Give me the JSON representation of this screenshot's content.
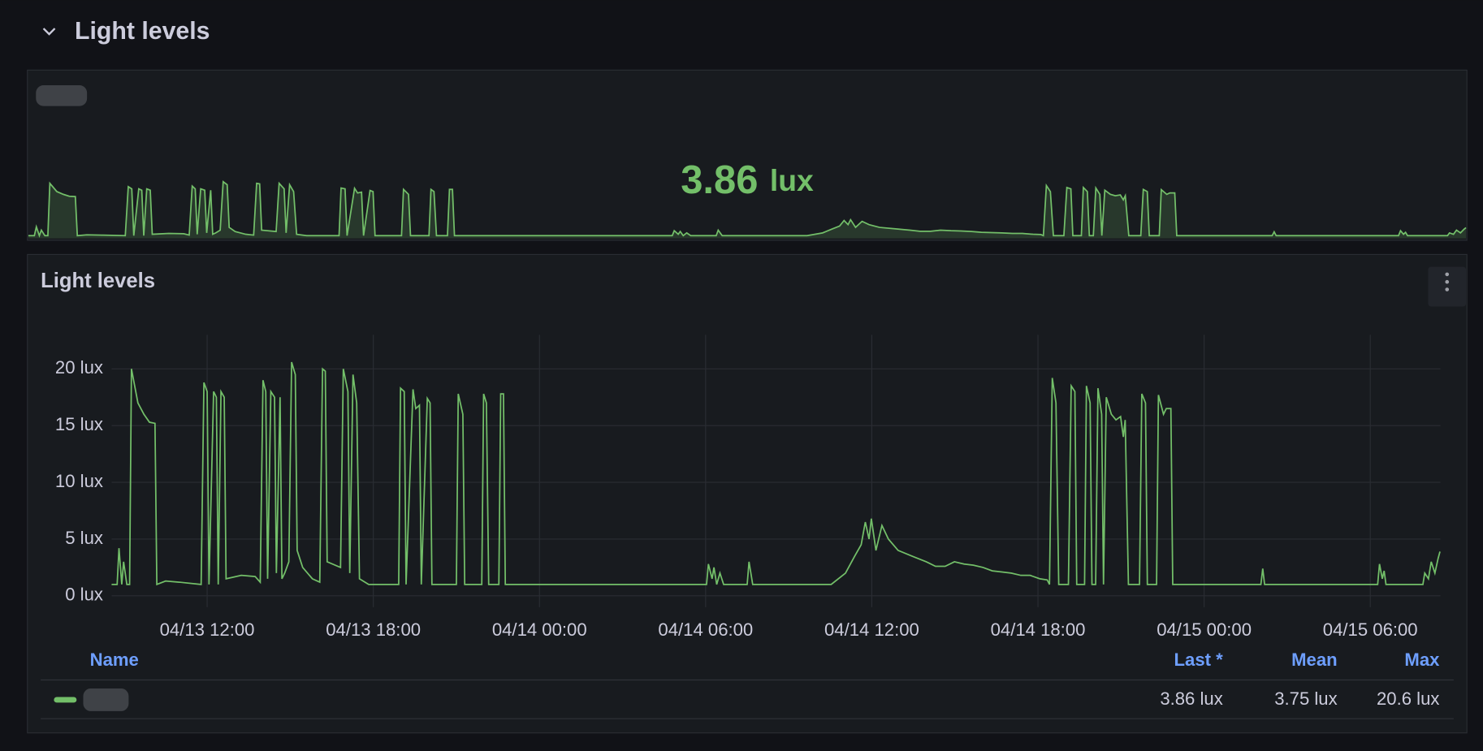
{
  "row": {
    "title": "Light levels"
  },
  "chart_data": [
    {
      "type": "stat",
      "value": 3.86,
      "unit": "lux",
      "color": "#73bf69"
    },
    {
      "type": "line",
      "title": "Light levels",
      "x": [
        "04/13 08:33",
        "04/13 08:45",
        "04/13 08:49",
        "04/13 08:55",
        "04/13 08:59",
        "04/13 09:06",
        "04/13 09:12",
        "04/13 09:16",
        "04/13 09:30",
        "04/13 09:43",
        "04/13 09:55",
        "04/13 10:07",
        "04/13 10:11",
        "04/13 10:30",
        "04/13 11:00",
        "04/13 11:47",
        "04/13 11:53",
        "04/13 12:00",
        "04/13 12:04",
        "04/13 12:14",
        "04/13 12:20",
        "04/13 12:24",
        "04/13 12:30",
        "04/13 12:37",
        "04/13 12:41",
        "04/13 13:14",
        "04/13 13:44",
        "04/13 13:55",
        "04/13 14:01",
        "04/13 14:07",
        "04/13 14:11",
        "04/13 14:18",
        "04/13 14:26",
        "04/13 14:30",
        "04/13 14:38",
        "04/13 14:42",
        "04/13 14:48",
        "04/13 14:57",
        "04/13 15:03",
        "04/13 15:11",
        "04/13 15:15",
        "04/13 15:27",
        "04/13 15:48",
        "04/13 16:04",
        "04/13 16:10",
        "04/13 16:16",
        "04/13 16:20",
        "04/13 16:49",
        "04/13 16:55",
        "04/13 17:05",
        "04/13 17:09",
        "04/13 17:16",
        "04/13 17:24",
        "04/13 17:30",
        "04/13 17:50",
        "04/13 18:55",
        "04/13 18:59",
        "04/13 19:07",
        "04/13 19:11",
        "04/13 19:26",
        "04/13 19:32",
        "04/13 19:40",
        "04/13 19:44",
        "04/13 19:57",
        "04/13 20:03",
        "04/13 20:07",
        "04/13 21:00",
        "04/13 21:04",
        "04/13 21:14",
        "04/13 21:18",
        "04/13 21:55",
        "04/13 21:59",
        "04/13 22:05",
        "04/13 22:10",
        "04/13 22:32",
        "04/13 22:36",
        "04/13 22:42",
        "04/13 22:46",
        "04/14 06:02",
        "04/14 06:06",
        "04/14 06:14",
        "04/14 06:18",
        "04/14 06:24",
        "04/14 06:31",
        "04/14 06:39",
        "04/14 07:30",
        "04/14 07:34",
        "04/14 07:42",
        "04/14 10:32",
        "04/14 11:03",
        "04/14 11:23",
        "04/14 11:37",
        "04/14 11:46",
        "04/14 11:54",
        "04/14 11:59",
        "04/14 12:09",
        "04/14 12:22",
        "04/14 12:36",
        "04/14 12:57",
        "04/14 13:27",
        "04/14 13:58",
        "04/14 14:18",
        "04/14 14:39",
        "04/14 14:59",
        "04/14 15:20",
        "04/14 15:40",
        "04/14 16:01",
        "04/14 16:21",
        "04/14 16:42",
        "04/14 17:02",
        "04/14 17:23",
        "04/14 17:43",
        "04/14 18:04",
        "04/14 18:20",
        "04/14 18:25",
        "04/14 18:31",
        "04/14 18:39",
        "04/14 18:45",
        "04/14 19:06",
        "04/14 19:12",
        "04/14 19:20",
        "04/14 19:24",
        "04/14 19:41",
        "04/14 19:45",
        "04/14 19:53",
        "04/14 19:57",
        "04/14 20:05",
        "04/14 20:10",
        "04/14 20:18",
        "04/14 20:22",
        "04/14 20:28",
        "04/14 20:39",
        "04/14 20:49",
        "04/14 20:59",
        "04/14 21:05",
        "04/14 21:09",
        "04/14 21:16",
        "04/14 21:40",
        "04/14 21:45",
        "04/14 21:53",
        "04/14 21:57",
        "04/14 22:17",
        "04/14 22:21",
        "04/14 22:32",
        "04/14 22:38",
        "04/14 22:48",
        "04/14 22:52",
        "04/15 02:03",
        "04/15 02:07",
        "04/15 02:11",
        "04/15 06:16",
        "04/15 06:20",
        "04/15 06:26",
        "04/15 06:30",
        "04/15 06:34",
        "04/15 07:54",
        "04/15 07:58",
        "04/15 08:06",
        "04/15 08:12",
        "04/15 08:20",
        "04/15 08:27",
        "04/15 08:31"
      ],
      "series": [
        {
          "color": "#73bf69",
          "values": [
            1,
            1,
            4.2,
            1,
            3,
            1,
            1,
            20,
            17,
            16,
            15.3,
            15.2,
            1,
            1.3,
            1.2,
            1,
            18.8,
            18,
            1,
            18,
            17.5,
            1,
            18,
            17.5,
            1.5,
            1.8,
            1.7,
            1.2,
            19,
            18,
            1.5,
            18,
            17.5,
            2,
            17.5,
            1.5,
            2,
            3,
            20.6,
            19.5,
            4,
            2.5,
            1.5,
            1.2,
            20,
            19.8,
            3,
            2.5,
            20,
            18,
            2,
            19.5,
            17,
            1.5,
            1,
            1,
            18.3,
            18,
            1,
            18.2,
            16.5,
            16.8,
            1,
            17.4,
            17,
            1,
            1,
            17.8,
            16,
            1,
            1,
            17.8,
            17,
            1,
            1,
            17.8,
            17.8,
            1,
            1,
            2.8,
            1.5,
            2.5,
            1,
            2,
            1,
            1,
            3,
            1,
            1,
            2,
            3.5,
            4.5,
            6.5,
            5,
            6.8,
            4,
            6.2,
            5,
            4,
            3.5,
            3,
            2.6,
            2.6,
            3,
            2.8,
            2.7,
            2.5,
            2.2,
            2.1,
            2,
            1.8,
            1.8,
            1.5,
            1.4,
            1,
            19.2,
            17,
            1,
            1,
            18.5,
            18,
            1,
            1,
            18.5,
            17,
            1,
            1,
            18.3,
            16,
            1,
            17.5,
            16,
            15.5,
            15.8,
            14,
            15.5,
            1,
            1,
            17.8,
            17,
            1,
            1,
            17.7,
            16,
            16.5,
            16.5,
            1,
            1,
            2.4,
            1,
            1,
            2.8,
            1.5,
            2.2,
            1,
            1,
            2,
            1.5,
            3,
            2,
            3.3,
            3.9
          ]
        }
      ],
      "xlim": [
        "04/13 08:33",
        "04/15 08:32"
      ],
      "xticks": [
        "04/13 12:00",
        "04/13 18:00",
        "04/14 00:00",
        "04/14 06:00",
        "04/14 12:00",
        "04/14 18:00",
        "04/15 00:00",
        "04/15 06:00"
      ],
      "ylim": [
        -1,
        23
      ],
      "yticks": [
        {
          "value": 0,
          "label": "0 lux"
        },
        {
          "value": 5,
          "label": "5 lux"
        },
        {
          "value": 10,
          "label": "10 lux"
        },
        {
          "value": 15,
          "label": "15 lux"
        },
        {
          "value": 20,
          "label": "20 lux"
        }
      ],
      "grid": true,
      "legend": {
        "headers": [
          "Name",
          "Last *",
          "Mean",
          "Max"
        ],
        "values": [
          3.86,
          3.75,
          20.6
        ],
        "value_labels": [
          "3.86 lux",
          "3.75 lux",
          "20.6 lux"
        ]
      }
    }
  ]
}
